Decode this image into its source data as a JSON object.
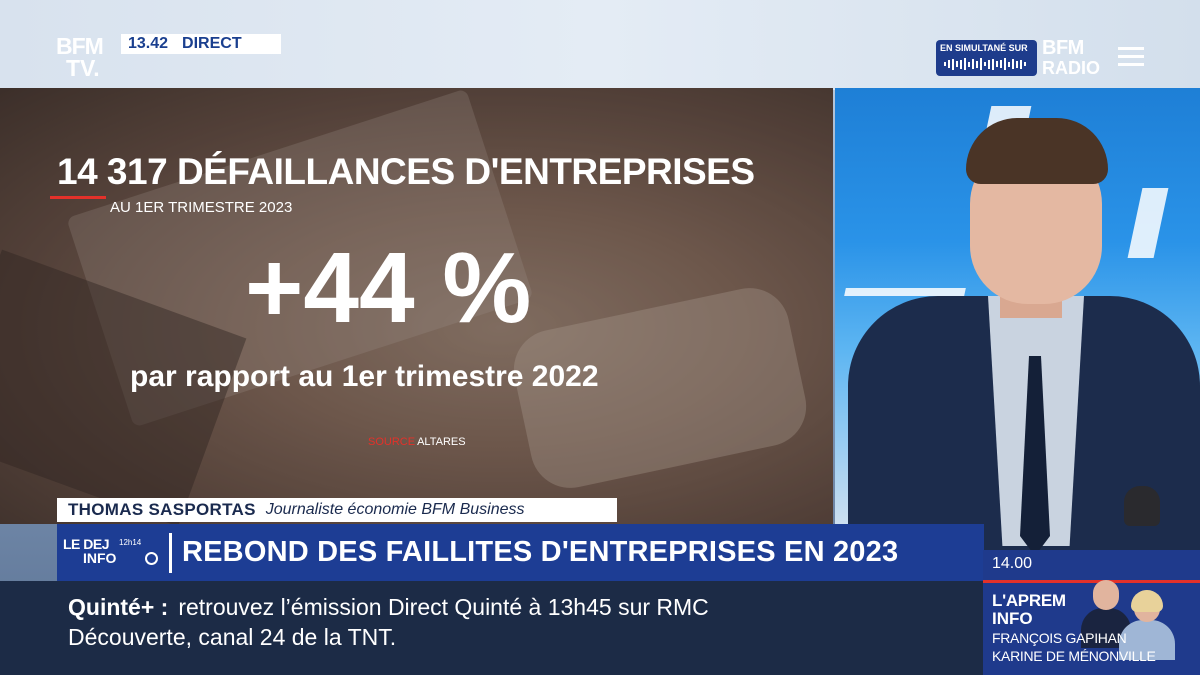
{
  "channel": {
    "logo_line1": "BFM",
    "logo_line2": "TV.",
    "time": "13.42",
    "live": "DIRECT"
  },
  "radio": {
    "simulcast_label": "EN SIMULTANÉ SUR",
    "logo_line1": "BFM",
    "logo_line2": "RADIO"
  },
  "graphic": {
    "headline": "14 317 DÉFAILLANCES D'ENTREPRISES",
    "subtitle": "AU 1ER TRIMESTRE 2023",
    "big_figure": "+44 %",
    "comparison": "par rapport au 1er trimestre 2022",
    "source_label": "SOURCE",
    "source_name": "ALTARES"
  },
  "guest": {
    "name": "THOMAS SASPORTAS",
    "role": "Journaliste économie BFM Business"
  },
  "banner": {
    "show_logo_line1": "LE DEJ",
    "show_logo_time": "12h14",
    "show_logo_line2": "INFO",
    "headline": "REBOND DES FAILLITES D'ENTREPRISES EN 2023"
  },
  "ticker": {
    "label": "Quinté+ :",
    "line1": "retrouvez l’émission Direct Quinté à 13h45 sur RMC",
    "line2": "Découverte, canal 24 de la TNT."
  },
  "next_show": {
    "time": "14.00",
    "title_line1": "L'APREM",
    "title_line2": "INFO",
    "host1": "FRANÇOIS GAPIHAN",
    "host2": "KARINE DE MÉNONVILLE"
  },
  "colors": {
    "brand_blue": "#1d3d94",
    "accent_red": "#e3312a",
    "ticker_bg": "#1c2b46"
  }
}
